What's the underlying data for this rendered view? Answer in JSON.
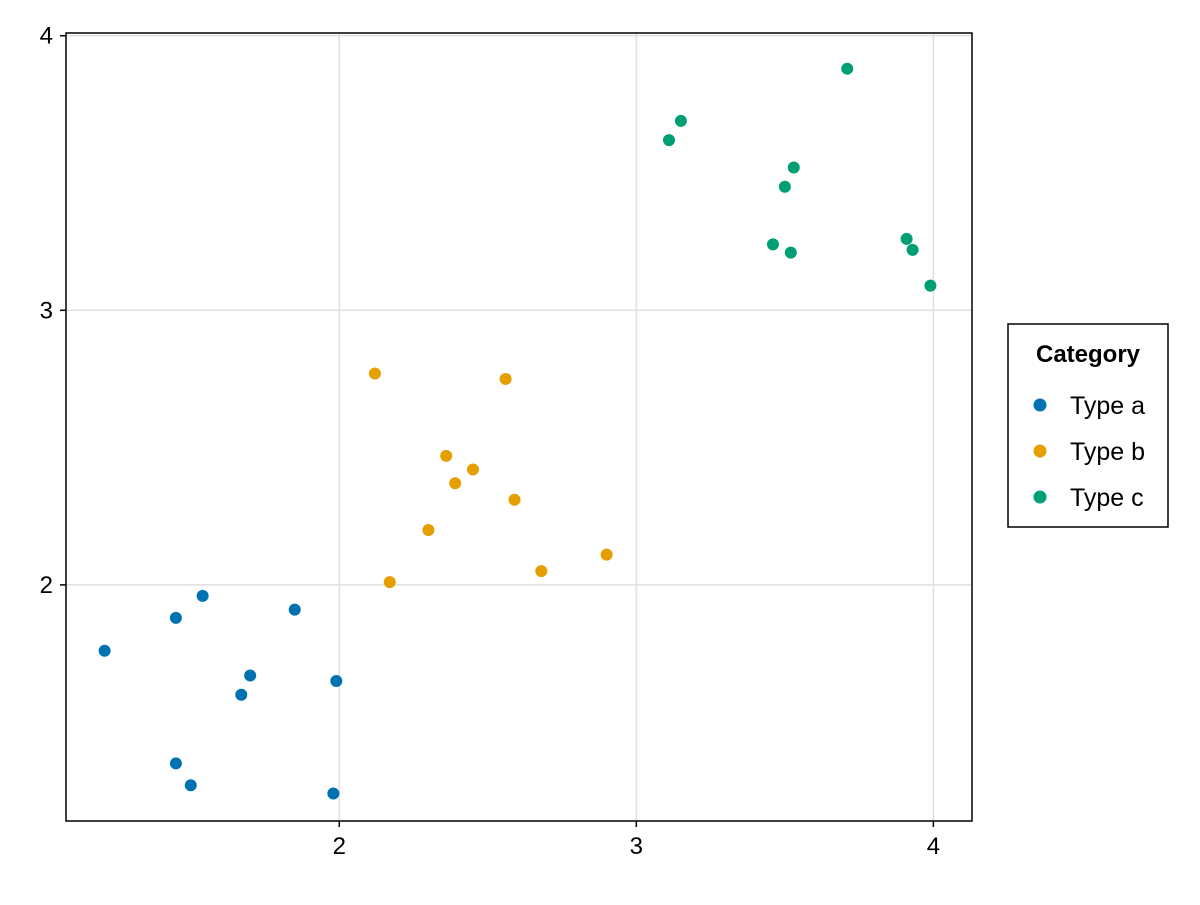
{
  "chart_data": {
    "type": "scatter",
    "title": "",
    "xlabel": "",
    "ylabel": "",
    "xlim": [
      1.08,
      4.13
    ],
    "ylim": [
      1.14,
      4.01
    ],
    "x_ticks": [
      2,
      3,
      4
    ],
    "y_ticks": [
      2,
      3,
      4
    ],
    "x_tick_labels": [
      "2",
      "3",
      "4"
    ],
    "y_tick_labels": [
      "2",
      "3",
      "4"
    ],
    "grid": true,
    "legend": {
      "title": "Category",
      "placement": "right"
    },
    "series": [
      {
        "name": "Type a",
        "color": "#0072b2",
        "points": [
          {
            "x": 1.21,
            "y": 1.76
          },
          {
            "x": 1.45,
            "y": 1.88
          },
          {
            "x": 1.54,
            "y": 1.96
          },
          {
            "x": 1.85,
            "y": 1.91
          },
          {
            "x": 1.7,
            "y": 1.67
          },
          {
            "x": 1.67,
            "y": 1.6
          },
          {
            "x": 1.99,
            "y": 1.65
          },
          {
            "x": 1.45,
            "y": 1.35
          },
          {
            "x": 1.5,
            "y": 1.27
          },
          {
            "x": 1.98,
            "y": 1.24
          }
        ]
      },
      {
        "name": "Type b",
        "color": "#e69f00",
        "points": [
          {
            "x": 2.12,
            "y": 2.77
          },
          {
            "x": 2.56,
            "y": 2.75
          },
          {
            "x": 2.36,
            "y": 2.47
          },
          {
            "x": 2.45,
            "y": 2.42
          },
          {
            "x": 2.39,
            "y": 2.37
          },
          {
            "x": 2.59,
            "y": 2.31
          },
          {
            "x": 2.3,
            "y": 2.2
          },
          {
            "x": 2.9,
            "y": 2.11
          },
          {
            "x": 2.68,
            "y": 2.05
          },
          {
            "x": 2.17,
            "y": 2.01
          }
        ]
      },
      {
        "name": "Type c",
        "color": "#009e73",
        "points": [
          {
            "x": 3.71,
            "y": 3.88
          },
          {
            "x": 3.15,
            "y": 3.69
          },
          {
            "x": 3.11,
            "y": 3.62
          },
          {
            "x": 3.53,
            "y": 3.52
          },
          {
            "x": 3.5,
            "y": 3.45
          },
          {
            "x": 3.46,
            "y": 3.24
          },
          {
            "x": 3.52,
            "y": 3.21
          },
          {
            "x": 3.91,
            "y": 3.26
          },
          {
            "x": 3.93,
            "y": 3.22
          },
          {
            "x": 3.99,
            "y": 3.09
          }
        ]
      }
    ]
  }
}
